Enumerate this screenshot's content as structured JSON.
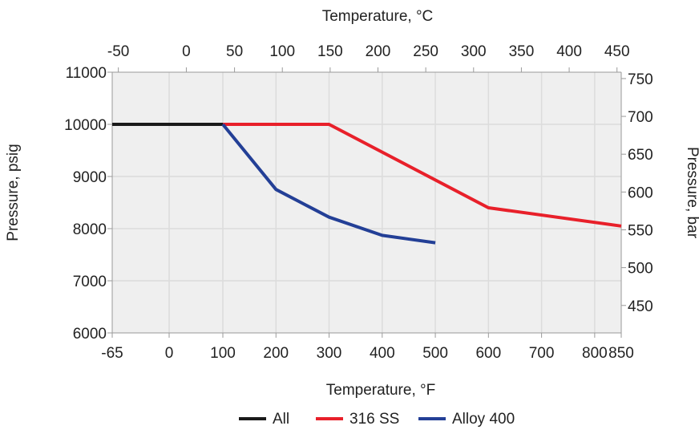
{
  "chart_data": {
    "type": "line",
    "title": "",
    "xlabel": "Temperature, °F",
    "xlabel_top": "Temperature, °C",
    "ylabel": "Pressure, psig",
    "ylabel_right": "Pressure, bar",
    "xlim": [
      -65,
      850
    ],
    "ylim": [
      6000,
      11000
    ],
    "x_ticks": [
      -65,
      0,
      100,
      200,
      300,
      400,
      500,
      600,
      700,
      800,
      850
    ],
    "y_ticks": [
      6000,
      7000,
      8000,
      9000,
      10000,
      11000
    ],
    "x_top_ticks": [
      -50,
      0,
      50,
      100,
      150,
      200,
      250,
      300,
      350,
      400,
      450
    ],
    "y_right_ticks": [
      450,
      500,
      550,
      600,
      650,
      700,
      750
    ],
    "grid": true,
    "legend_position": "bottom-center",
    "series": [
      {
        "name": "All",
        "color": "#1a1a1a",
        "points": [
          [
            -65,
            10000
          ],
          [
            100,
            10000
          ]
        ]
      },
      {
        "name": "316 SS",
        "color": "#e8202a",
        "points": [
          [
            100,
            10000
          ],
          [
            300,
            10000
          ],
          [
            600,
            8400
          ],
          [
            850,
            8050
          ]
        ]
      },
      {
        "name": "Alloy 400",
        "color": "#233f96",
        "points": [
          [
            100,
            10000
          ],
          [
            200,
            8750
          ],
          [
            300,
            8220
          ],
          [
            400,
            7870
          ],
          [
            500,
            7730
          ]
        ]
      }
    ]
  }
}
